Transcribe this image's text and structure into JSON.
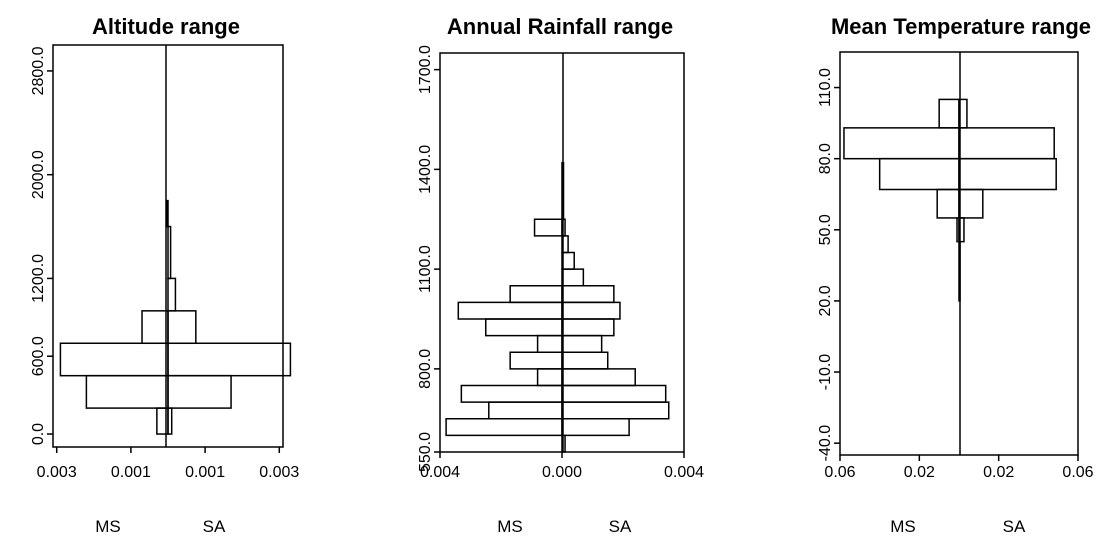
{
  "chart_data": [
    {
      "type": "bar",
      "orientation": "back-to-back horizontal histogram",
      "title": "Altitude range",
      "group_labels": [
        "MS",
        "SA"
      ],
      "x_tick_labels": [
        "0.003",
        "0.001",
        "0.001",
        "0.003"
      ],
      "y_tick_labels": [
        "0.0",
        "600.0",
        "1200.0",
        "2000.0",
        "2800.0"
      ],
      "xlim": [
        -0.0031,
        0.0031
      ],
      "ylim": [
        -100,
        3000
      ],
      "bins": [
        {
          "from": 0,
          "to": 200,
          "MS": 0.0003,
          "SA": 0.0001
        },
        {
          "from": 200,
          "to": 450,
          "MS": 0.0022,
          "SA": 0.0017
        },
        {
          "from": 450,
          "to": 700,
          "MS": 0.0029,
          "SA": 0.0033
        },
        {
          "from": 700,
          "to": 950,
          "MS": 0.0007,
          "SA": 0.00075
        },
        {
          "from": 950,
          "to": 1200,
          "MS": 0.0,
          "SA": 0.0002
        },
        {
          "from": 1200,
          "to": 1600,
          "MS": 0.0,
          "SA": 7e-05
        },
        {
          "from": 1600,
          "to": 1800,
          "MS": 3e-05,
          "SA": 0.0
        }
      ]
    },
    {
      "type": "bar",
      "orientation": "back-to-back horizontal histogram",
      "title": "Annual Rainfall range",
      "group_labels": [
        "MS",
        "SA"
      ],
      "x_tick_labels": [
        "0.004",
        "0.000",
        "0.004"
      ],
      "y_tick_labels": [
        "550.0",
        "800.0",
        "1100.0",
        "1400.0",
        "1700.0"
      ],
      "xlim": [
        -0.004,
        0.004
      ],
      "ylim": [
        550,
        1750
      ],
      "bins": [
        {
          "from": 550,
          "to": 600,
          "MS": 0.0,
          "SA": 0.0001
        },
        {
          "from": 600,
          "to": 650,
          "MS": 0.0038,
          "SA": 0.0022
        },
        {
          "from": 650,
          "to": 700,
          "MS": 0.0024,
          "SA": 0.0035
        },
        {
          "from": 700,
          "to": 750,
          "MS": 0.0033,
          "SA": 0.0034
        },
        {
          "from": 750,
          "to": 800,
          "MS": 0.0008,
          "SA": 0.0024
        },
        {
          "from": 800,
          "to": 850,
          "MS": 0.0017,
          "SA": 0.0015
        },
        {
          "from": 850,
          "to": 900,
          "MS": 0.0008,
          "SA": 0.0013
        },
        {
          "from": 900,
          "to": 950,
          "MS": 0.0025,
          "SA": 0.0017
        },
        {
          "from": 950,
          "to": 1000,
          "MS": 0.0034,
          "SA": 0.0019
        },
        {
          "from": 1000,
          "to": 1050,
          "MS": 0.0017,
          "SA": 0.0017
        },
        {
          "from": 1050,
          "to": 1100,
          "MS": 0.0,
          "SA": 0.0007
        },
        {
          "from": 1100,
          "to": 1150,
          "MS": 0.0,
          "SA": 0.0004
        },
        {
          "from": 1150,
          "to": 1200,
          "MS": 0.0,
          "SA": 0.0002
        },
        {
          "from": 1200,
          "to": 1250,
          "MS": 0.0009,
          "SA": 0.0001
        },
        {
          "from": 1250,
          "to": 1420,
          "MS": 0.0,
          "SA": 5e-05
        }
      ]
    },
    {
      "type": "bar",
      "orientation": "back-to-back horizontal histogram",
      "title": "Mean Temperature range",
      "group_labels": [
        "MS",
        "SA"
      ],
      "x_tick_labels": [
        "0.06",
        "0.02",
        "0.02",
        "0.06"
      ],
      "y_tick_labels": [
        "-40.0",
        "-10.0",
        "20.0",
        "50.0",
        "80.0",
        "110.0"
      ],
      "xlim": [
        -0.06,
        0.06
      ],
      "ylim": [
        -45,
        125
      ],
      "bins": [
        {
          "from": 20,
          "to": 45,
          "MS": 0.0,
          "SA": 0.0005
        },
        {
          "from": 45,
          "to": 55,
          "MS": 0.001,
          "SA": 0.0025
        },
        {
          "from": 55,
          "to": 67,
          "MS": 0.011,
          "SA": 0.012
        },
        {
          "from": 67,
          "to": 80,
          "MS": 0.04,
          "SA": 0.049
        },
        {
          "from": 80,
          "to": 93,
          "MS": 0.058,
          "SA": 0.048
        },
        {
          "from": 93,
          "to": 105,
          "MS": 0.01,
          "SA": 0.004
        }
      ]
    }
  ]
}
